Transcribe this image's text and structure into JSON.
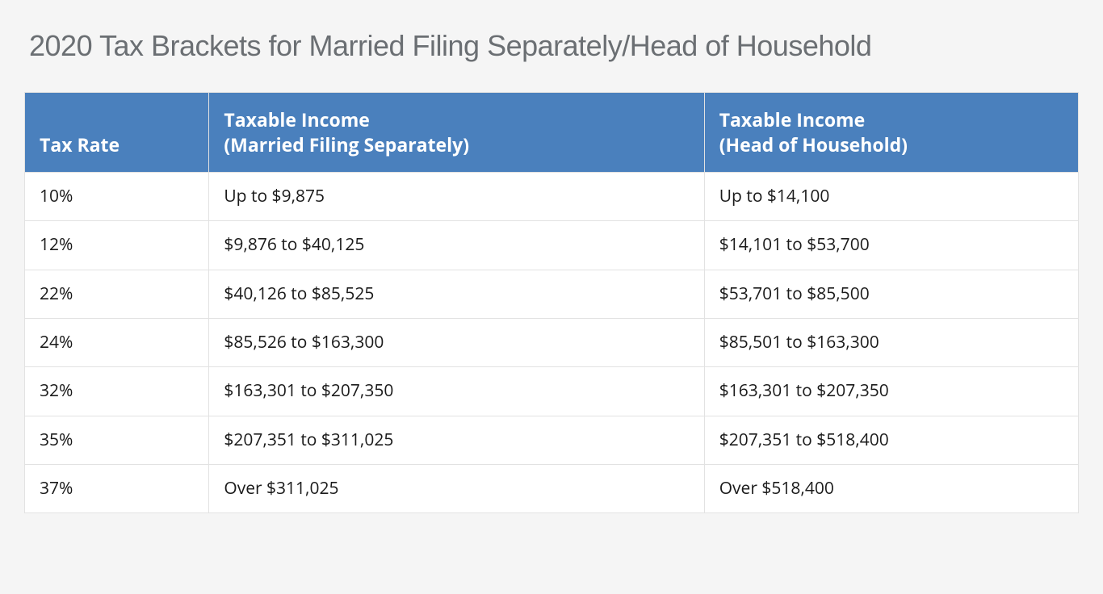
{
  "title": "2020 Tax Brackets for Married Filing Separately/Head of Household",
  "table": {
    "type": "table",
    "header_bg": "#4a80bd",
    "header_fg": "#ffffff",
    "border_color": "#e2e2e2",
    "row_bg": "#ffffff",
    "columns": [
      {
        "key": "rate",
        "label": "Tax Rate",
        "width_pct": 17.5
      },
      {
        "key": "mfs",
        "label": "Taxable Income\n(Married Filing Separately)",
        "width_pct": 47
      },
      {
        "key": "hoh",
        "label": "Taxable Income\n(Head of Household)",
        "width_pct": 35.5
      }
    ],
    "rows": [
      {
        "rate": "10%",
        "mfs": "Up to $9,875",
        "hoh": "Up to $14,100"
      },
      {
        "rate": "12%",
        "mfs": "$9,876 to $40,125",
        "hoh": "$14,101 to $53,700"
      },
      {
        "rate": "22%",
        "mfs": "$40,126 to $85,525",
        "hoh": "$53,701 to $85,500"
      },
      {
        "rate": "24%",
        "mfs": "$85,526 to $163,300",
        "hoh": "$85,501 to $163,300"
      },
      {
        "rate": "32%",
        "mfs": "$163,301 to $207,350",
        "hoh": "$163,301 to $207,350"
      },
      {
        "rate": "35%",
        "mfs": "$207,351 to $311,025",
        "hoh": "$207,351 to $518,400"
      },
      {
        "rate": "37%",
        "mfs": "Over $311,025",
        "hoh": "Over $518,400"
      }
    ]
  },
  "page_bg": "#f5f5f5",
  "title_color": "#6b6f73",
  "title_fontsize": 36,
  "cell_fontsize": 21,
  "header_fontsize": 23
}
